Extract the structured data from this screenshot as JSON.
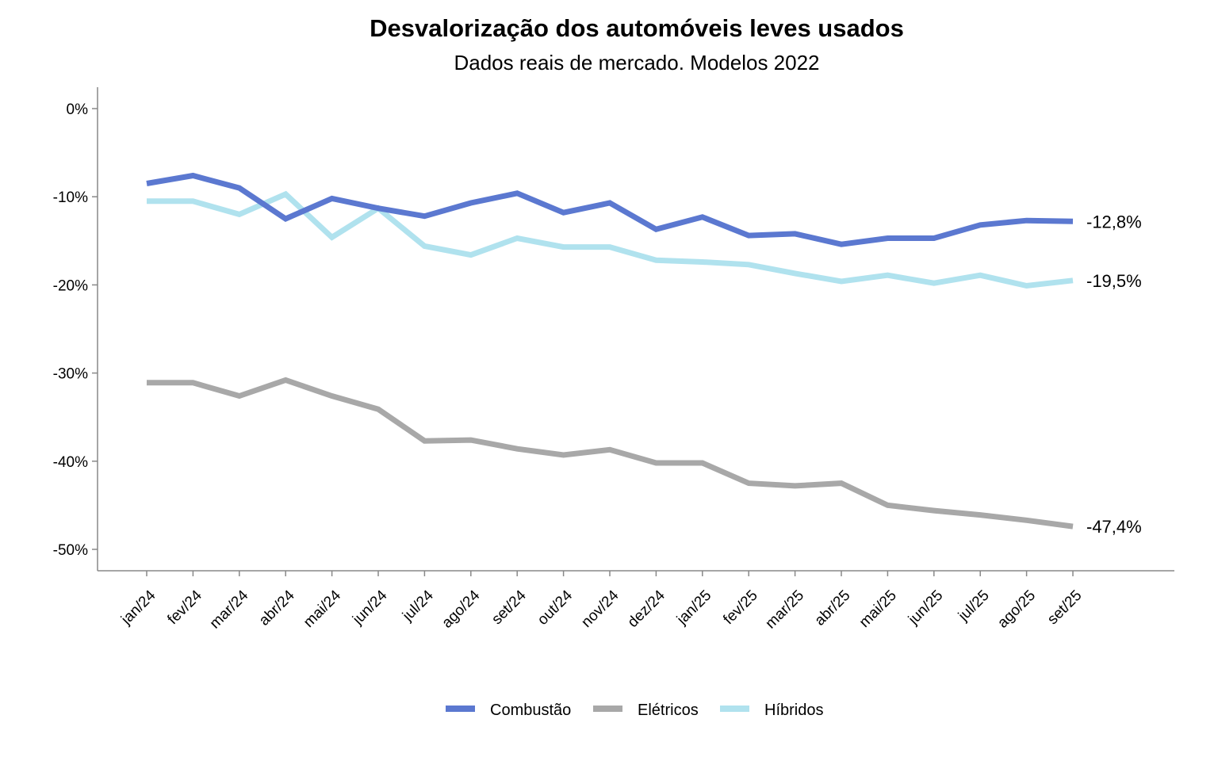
{
  "chart_data": {
    "type": "line",
    "title": "Desvalorização dos automóveis leves usados",
    "subtitle": "Dados reais de mercado. Modelos 2022",
    "xlabel": "",
    "ylabel": "",
    "ylim": [
      -52.5,
      2.5
    ],
    "yticks": [
      0,
      -10,
      -20,
      -30,
      -40,
      -50
    ],
    "ytick_labels": [
      "0%",
      "-10%",
      "-20%",
      "-30%",
      "-40%",
      "-50%"
    ],
    "grid": false,
    "legend_position": "bottom-center",
    "categories": [
      "jan/24",
      "fev/24",
      "mar/24",
      "abr/24",
      "mai/24",
      "jun/24",
      "jul/24",
      "ago/24",
      "set/24",
      "out/24",
      "nov/24",
      "dez/24",
      "jan/25",
      "fev/25",
      "mar/25",
      "abr/25",
      "mai/25",
      "jun/25",
      "jul/25",
      "ago/25",
      "set/25"
    ],
    "series": [
      {
        "name": "Combustão",
        "color": "#5B78D0",
        "values": [
          -8.5,
          -7.6,
          -9.0,
          -12.5,
          -10.2,
          -11.3,
          -12.2,
          -10.7,
          -9.6,
          -11.8,
          -10.7,
          -13.7,
          -12.3,
          -14.4,
          -14.2,
          -15.4,
          -14.7,
          -14.7,
          -13.2,
          -12.7,
          -12.8
        ],
        "end_label": "-12,8%"
      },
      {
        "name": "Elétricos",
        "color": "#A8A8A8",
        "values": [
          -31.1,
          -31.1,
          -32.6,
          -30.8,
          -32.6,
          -34.1,
          -37.7,
          -37.6,
          -38.6,
          -39.3,
          -38.7,
          -40.2,
          -40.2,
          -42.5,
          -42.8,
          -42.5,
          -45.0,
          -45.6,
          -46.1,
          -46.7,
          -47.4
        ],
        "end_label": "-47,4%"
      },
      {
        "name": "Híbridos",
        "color": "#B0E2EE",
        "values": [
          -10.5,
          -10.5,
          -12.0,
          -9.7,
          -14.6,
          -11.3,
          -15.6,
          -16.6,
          -14.7,
          -15.7,
          -15.7,
          -17.2,
          -17.4,
          -17.7,
          -18.7,
          -19.6,
          -18.9,
          -19.8,
          -18.9,
          -20.1,
          -19.5
        ],
        "end_label": "-19,5%"
      }
    ]
  }
}
